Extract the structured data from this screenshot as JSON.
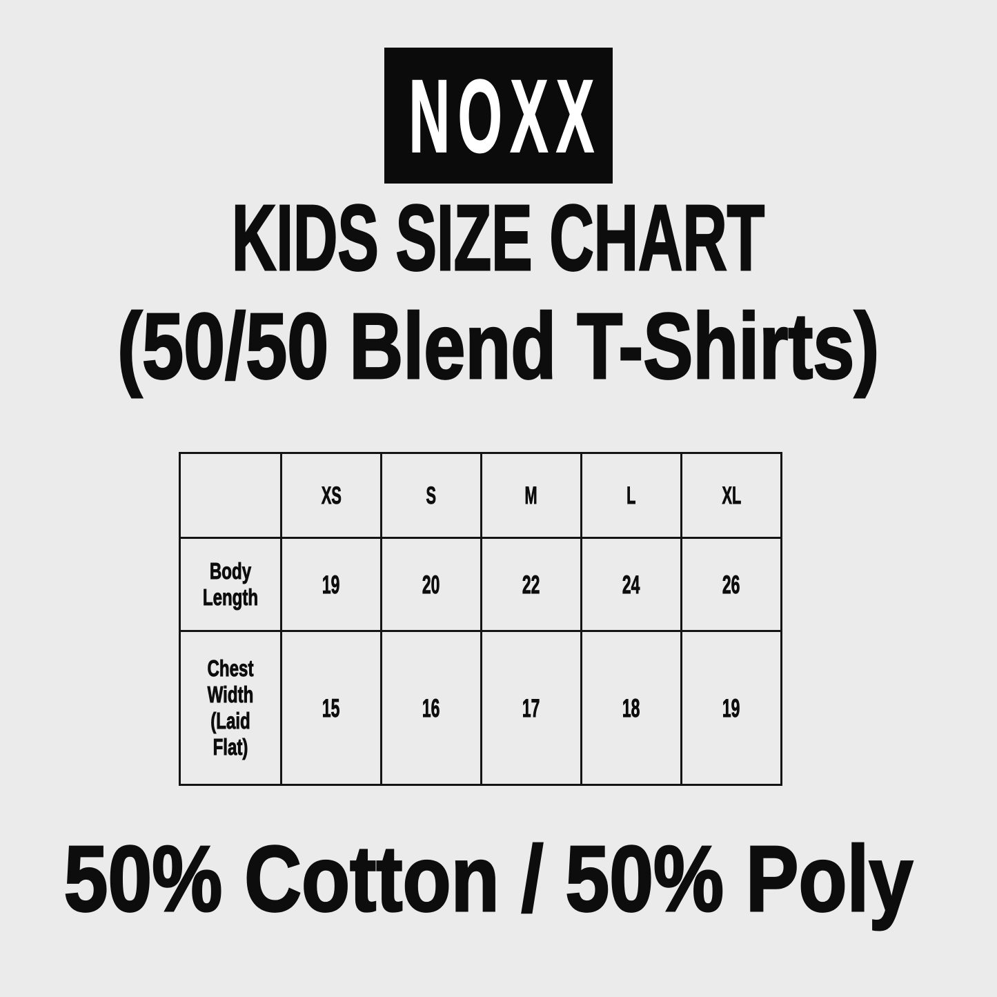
{
  "page": {
    "background_color": "#ebebeb",
    "ink_color": "#0d0d0d"
  },
  "logo": {
    "text": "NOXX",
    "box_color": "#0b0b0b",
    "text_color": "#ffffff"
  },
  "heading": {
    "line1": "KIDS SIZE CHART",
    "line2": "(50/50 Blend T-Shirts)"
  },
  "size_table": {
    "column_headers": [
      "XS",
      "S",
      "M",
      "L",
      "XL"
    ],
    "rows": [
      {
        "label": "Body Length",
        "values": [
          "19",
          "20",
          "22",
          "24",
          "26"
        ]
      },
      {
        "label": "Chest Width (Laid Flat)",
        "values": [
          "15",
          "16",
          "17",
          "18",
          "19"
        ]
      }
    ]
  },
  "footer": {
    "text": "50% Cotton / 50% Poly"
  }
}
